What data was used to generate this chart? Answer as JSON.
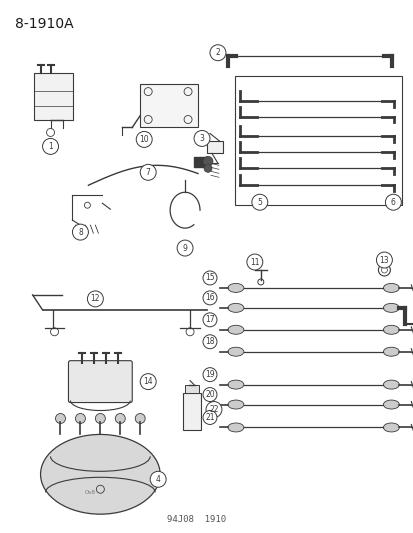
{
  "title": "8-1910A",
  "footer": "94J08  1910",
  "bg_color": "#ffffff",
  "text_color": "#1a1a1a",
  "title_fontsize": 10,
  "footer_fontsize": 6.5,
  "fig_width": 4.14,
  "fig_height": 5.33,
  "dpi": 100,
  "lc": "#3a3a3a",
  "lc2": "#555555"
}
